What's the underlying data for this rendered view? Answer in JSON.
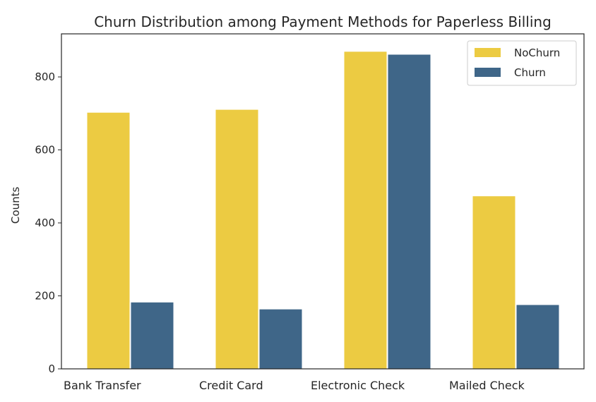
{
  "chart_data": {
    "type": "bar",
    "title": "Churn Distribution among Payment Methods for Paperless Billing",
    "xlabel": "",
    "ylabel": "Counts",
    "categories": [
      "Bank Transfer",
      "Credit Card",
      "Electronic Check",
      "Mailed Check"
    ],
    "series": [
      {
        "name": "NoChurn",
        "values": [
          703,
          711,
          870,
          474
        ],
        "color": "#ECCB42"
      },
      {
        "name": "Churn",
        "values": [
          183,
          164,
          862,
          176
        ],
        "color": "#3F6688"
      }
    ],
    "ylim": [
      0,
      918
    ],
    "yticks": [
      0,
      200,
      400,
      600,
      800
    ],
    "grid": false,
    "legend_position": "top-right"
  }
}
